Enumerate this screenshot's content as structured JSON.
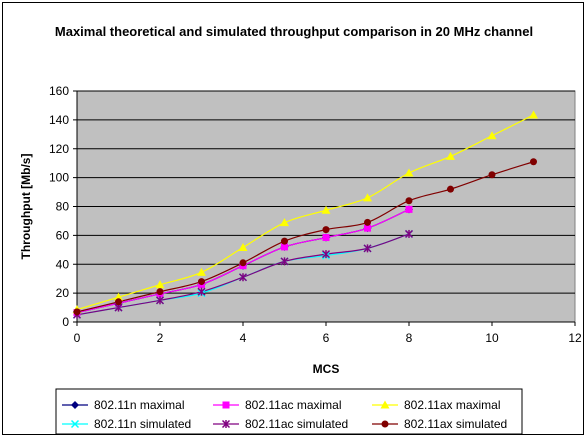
{
  "chart_data": {
    "type": "line",
    "title": "Maximal theoretical and simulated throughput comparison in 20 MHz channel",
    "xlabel": "MCS",
    "ylabel": "Throughput [Mb/s]",
    "xlim": [
      0,
      12
    ],
    "ylim": [
      0,
      160
    ],
    "xticks": [
      0,
      2,
      4,
      6,
      8,
      10,
      12
    ],
    "yticks": [
      0,
      20,
      40,
      60,
      80,
      100,
      120,
      140,
      160
    ],
    "grid": true,
    "plot_background": "#c0c0c0",
    "legend_position": "bottom",
    "series": [
      {
        "name": "802.11n maximal",
        "color": "#000080",
        "marker": "diamond",
        "x": [
          0,
          1,
          2,
          3,
          4,
          5,
          6,
          7,
          8
        ],
        "y": [
          6.5,
          13,
          19.5,
          26,
          39,
          52,
          58.5,
          65,
          78
        ]
      },
      {
        "name": "802.11ac maximal",
        "color": "#ff00ff",
        "marker": "square",
        "x": [
          0,
          1,
          2,
          3,
          4,
          5,
          6,
          7,
          8
        ],
        "y": [
          6.5,
          13,
          19.5,
          26,
          39,
          52,
          58.5,
          65,
          78
        ]
      },
      {
        "name": "802.11ax maximal",
        "color": "#ffff00",
        "marker": "triangle",
        "x": [
          0,
          1,
          2,
          3,
          4,
          5,
          6,
          7,
          8,
          9,
          10,
          11
        ],
        "y": [
          8.6,
          17.2,
          25.8,
          34.4,
          51.6,
          68.8,
          77.4,
          86,
          103.2,
          114.7,
          129,
          143.4
        ]
      },
      {
        "name": "802.11n simulated",
        "color": "#00ffff",
        "marker": "cross",
        "x": [
          0,
          1,
          2,
          3,
          4,
          5,
          6,
          7,
          8
        ],
        "y": [
          5,
          10,
          15,
          20,
          31,
          42,
          46,
          51,
          61
        ]
      },
      {
        "name": "802.11ac simulated",
        "color": "#800080",
        "marker": "star",
        "x": [
          0,
          1,
          2,
          3,
          4,
          5,
          6,
          7,
          8
        ],
        "y": [
          5,
          10,
          15,
          21,
          31,
          42,
          47,
          51,
          61
        ]
      },
      {
        "name": "802.11ax simulated",
        "color": "#800000",
        "marker": "circle",
        "x": [
          0,
          1,
          2,
          3,
          4,
          5,
          6,
          7,
          8,
          9,
          10,
          11
        ],
        "y": [
          7,
          14,
          21,
          28,
          41,
          56,
          64,
          69,
          84,
          92,
          102,
          111
        ]
      }
    ]
  }
}
